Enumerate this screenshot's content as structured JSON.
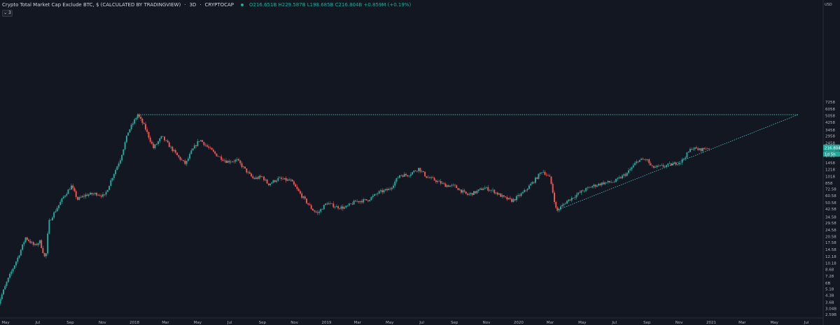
{
  "legend": {
    "title": "Crypto Total Market Cap Exclude BTC, $ (CALCULATED BY TRADINGVIEW)",
    "interval": "3D",
    "exchange": "CRYPTOCAP",
    "ohlc": "O216.651B H229.587B L198.685B C216.804B +0.859M (+0.19%)",
    "collapse": "⌄ 3"
  },
  "axis": {
    "currency": "USD"
  },
  "colors": {
    "up": "#26a69a",
    "down": "#ef5350",
    "background": "#131722",
    "trendline": "#4fc3c3"
  },
  "chart_data": {
    "type": "candlestick",
    "scale": "log",
    "title": "Crypto Total Market Cap Exclude BTC, $ (CALCULATED BY TRADINGVIEW)",
    "y_unit": "USD (billions)",
    "ylim": [
      2.5,
      8400
    ],
    "y_ticks": [
      "7258",
      "6058",
      "5058",
      "4258",
      "3458",
      "2958",
      "2458",
      "2058",
      "1758",
      "1458",
      "1218",
      "1018",
      "858",
      "72.58",
      "60.58",
      "50.58",
      "42.58",
      "34.58",
      "29.58",
      "24.58",
      "20.58",
      "17.58",
      "14.58",
      "12.18",
      "10.18",
      "8.68",
      "7.28",
      "6B",
      "5.18",
      "4.3B",
      "3.6B",
      "3.04B",
      "2.59B"
    ],
    "x_ticks": [
      "May",
      "Jul",
      "Sep",
      "Nov",
      "2018",
      "Mar",
      "May",
      "Jul",
      "Sep",
      "Nov",
      "2019",
      "Mar",
      "May",
      "Jul",
      "Sep",
      "Nov",
      "2020",
      "Mar",
      "May",
      "Jul",
      "Sep",
      "Nov",
      "2021",
      "Mar",
      "May",
      "Jul"
    ],
    "last_price_label": "216.804B",
    "last_price": 216.804,
    "countdown_label": "1d 5h",
    "anchors": [
      {
        "date": "2017-04-15",
        "value": 3.2
      },
      {
        "date": "2017-05-05",
        "value": 6.5
      },
      {
        "date": "2017-05-25",
        "value": 12
      },
      {
        "date": "2017-06-08",
        "value": 20
      },
      {
        "date": "2017-06-25",
        "value": 16
      },
      {
        "date": "2017-07-05",
        "value": 18
      },
      {
        "date": "2017-07-16",
        "value": 11
      },
      {
        "date": "2017-07-22",
        "value": 30
      },
      {
        "date": "2017-08-05",
        "value": 42
      },
      {
        "date": "2017-08-20",
        "value": 60
      },
      {
        "date": "2017-09-03",
        "value": 78
      },
      {
        "date": "2017-09-15",
        "value": 55
      },
      {
        "date": "2017-10-01",
        "value": 62
      },
      {
        "date": "2017-10-20",
        "value": 64
      },
      {
        "date": "2017-11-05",
        "value": 60
      },
      {
        "date": "2017-11-20",
        "value": 100
      },
      {
        "date": "2017-12-05",
        "value": 160
      },
      {
        "date": "2017-12-20",
        "value": 330
      },
      {
        "date": "2018-01-07",
        "value": 520
      },
      {
        "date": "2018-01-20",
        "value": 380
      },
      {
        "date": "2018-02-06",
        "value": 215
      },
      {
        "date": "2018-02-22",
        "value": 290
      },
      {
        "date": "2018-03-10",
        "value": 220
      },
      {
        "date": "2018-03-25",
        "value": 170
      },
      {
        "date": "2018-04-08",
        "value": 140
      },
      {
        "date": "2018-04-20",
        "value": 200
      },
      {
        "date": "2018-05-05",
        "value": 270
      },
      {
        "date": "2018-05-20",
        "value": 220
      },
      {
        "date": "2018-06-05",
        "value": 180
      },
      {
        "date": "2018-06-25",
        "value": 150
      },
      {
        "date": "2018-07-15",
        "value": 155
      },
      {
        "date": "2018-08-05",
        "value": 110
      },
      {
        "date": "2018-08-15",
        "value": 95
      },
      {
        "date": "2018-09-01",
        "value": 100
      },
      {
        "date": "2018-09-12",
        "value": 82
      },
      {
        "date": "2018-10-01",
        "value": 95
      },
      {
        "date": "2018-10-25",
        "value": 90
      },
      {
        "date": "2018-11-15",
        "value": 60
      },
      {
        "date": "2018-12-05",
        "value": 42
      },
      {
        "date": "2018-12-15",
        "value": 38
      },
      {
        "date": "2019-01-01",
        "value": 50
      },
      {
        "date": "2019-01-20",
        "value": 45
      },
      {
        "date": "2019-02-05",
        "value": 44
      },
      {
        "date": "2019-02-25",
        "value": 52
      },
      {
        "date": "2019-03-20",
        "value": 54
      },
      {
        "date": "2019-04-10",
        "value": 66
      },
      {
        "date": "2019-05-01",
        "value": 72
      },
      {
        "date": "2019-05-20",
        "value": 105
      },
      {
        "date": "2019-06-05",
        "value": 105
      },
      {
        "date": "2019-06-25",
        "value": 125
      },
      {
        "date": "2019-07-10",
        "value": 100
      },
      {
        "date": "2019-07-25",
        "value": 92
      },
      {
        "date": "2019-08-15",
        "value": 80
      },
      {
        "date": "2019-09-01",
        "value": 78
      },
      {
        "date": "2019-09-25",
        "value": 62
      },
      {
        "date": "2019-10-10",
        "value": 66
      },
      {
        "date": "2019-10-28",
        "value": 75
      },
      {
        "date": "2019-11-15",
        "value": 68
      },
      {
        "date": "2019-12-05",
        "value": 57
      },
      {
        "date": "2019-12-20",
        "value": 53
      },
      {
        "date": "2020-01-10",
        "value": 66
      },
      {
        "date": "2020-02-01",
        "value": 92
      },
      {
        "date": "2020-02-15",
        "value": 118
      },
      {
        "date": "2020-03-01",
        "value": 96
      },
      {
        "date": "2020-03-13",
        "value": 40
      },
      {
        "date": "2020-04-01",
        "value": 52
      },
      {
        "date": "2020-04-30",
        "value": 68
      },
      {
        "date": "2020-05-20",
        "value": 78
      },
      {
        "date": "2020-06-10",
        "value": 85
      },
      {
        "date": "2020-07-01",
        "value": 88
      },
      {
        "date": "2020-07-25",
        "value": 110
      },
      {
        "date": "2020-08-15",
        "value": 155
      },
      {
        "date": "2020-09-01",
        "value": 158
      },
      {
        "date": "2020-09-10",
        "value": 128
      },
      {
        "date": "2020-09-30",
        "value": 132
      },
      {
        "date": "2020-10-20",
        "value": 140
      },
      {
        "date": "2020-11-05",
        "value": 150
      },
      {
        "date": "2020-11-25",
        "value": 215
      },
      {
        "date": "2020-12-10",
        "value": 205
      },
      {
        "date": "2020-12-28",
        "value": 216.8
      }
    ],
    "lines": [
      {
        "name": "horizontal resistance",
        "from": {
          "date": "2018-01-07",
          "value": 520
        },
        "to": {
          "date": "2021-06-15",
          "value": 520
        }
      },
      {
        "name": "rising support",
        "from": {
          "date": "2020-03-13",
          "value": 41
        },
        "to": {
          "date": "2021-06-15",
          "value": 520
        }
      }
    ]
  }
}
